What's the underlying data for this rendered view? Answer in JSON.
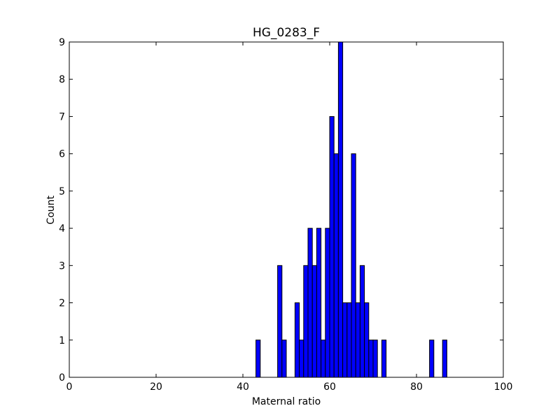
{
  "chart_data": {
    "type": "bar",
    "title": "HG_0283_F",
    "xlabel": "Maternal ratio",
    "ylabel": "Count",
    "xlim": [
      0,
      100
    ],
    "ylim": [
      0,
      9
    ],
    "xticks": [
      "0",
      "20",
      "40",
      "60",
      "80",
      "100"
    ],
    "yticks": [
      "0",
      "1",
      "2",
      "3",
      "4",
      "5",
      "6",
      "7",
      "8",
      "9"
    ],
    "bin_width": 1,
    "bars": [
      {
        "x": 43,
        "count": 1
      },
      {
        "x": 48,
        "count": 3
      },
      {
        "x": 49,
        "count": 1
      },
      {
        "x": 52,
        "count": 2
      },
      {
        "x": 53,
        "count": 1
      },
      {
        "x": 54,
        "count": 3
      },
      {
        "x": 55,
        "count": 4
      },
      {
        "x": 56,
        "count": 3
      },
      {
        "x": 57,
        "count": 4
      },
      {
        "x": 58,
        "count": 1
      },
      {
        "x": 59,
        "count": 4
      },
      {
        "x": 60,
        "count": 7
      },
      {
        "x": 61,
        "count": 6
      },
      {
        "x": 62,
        "count": 9
      },
      {
        "x": 63,
        "count": 2
      },
      {
        "x": 64,
        "count": 2
      },
      {
        "x": 65,
        "count": 6
      },
      {
        "x": 66,
        "count": 2
      },
      {
        "x": 67,
        "count": 3
      },
      {
        "x": 68,
        "count": 2
      },
      {
        "x": 69,
        "count": 1
      },
      {
        "x": 70,
        "count": 1
      },
      {
        "x": 72,
        "count": 1
      },
      {
        "x": 83,
        "count": 1
      },
      {
        "x": 86,
        "count": 1
      }
    ],
    "bar_color": "#0000ff",
    "edge_color": "#000000",
    "grid": false,
    "legend": false
  }
}
